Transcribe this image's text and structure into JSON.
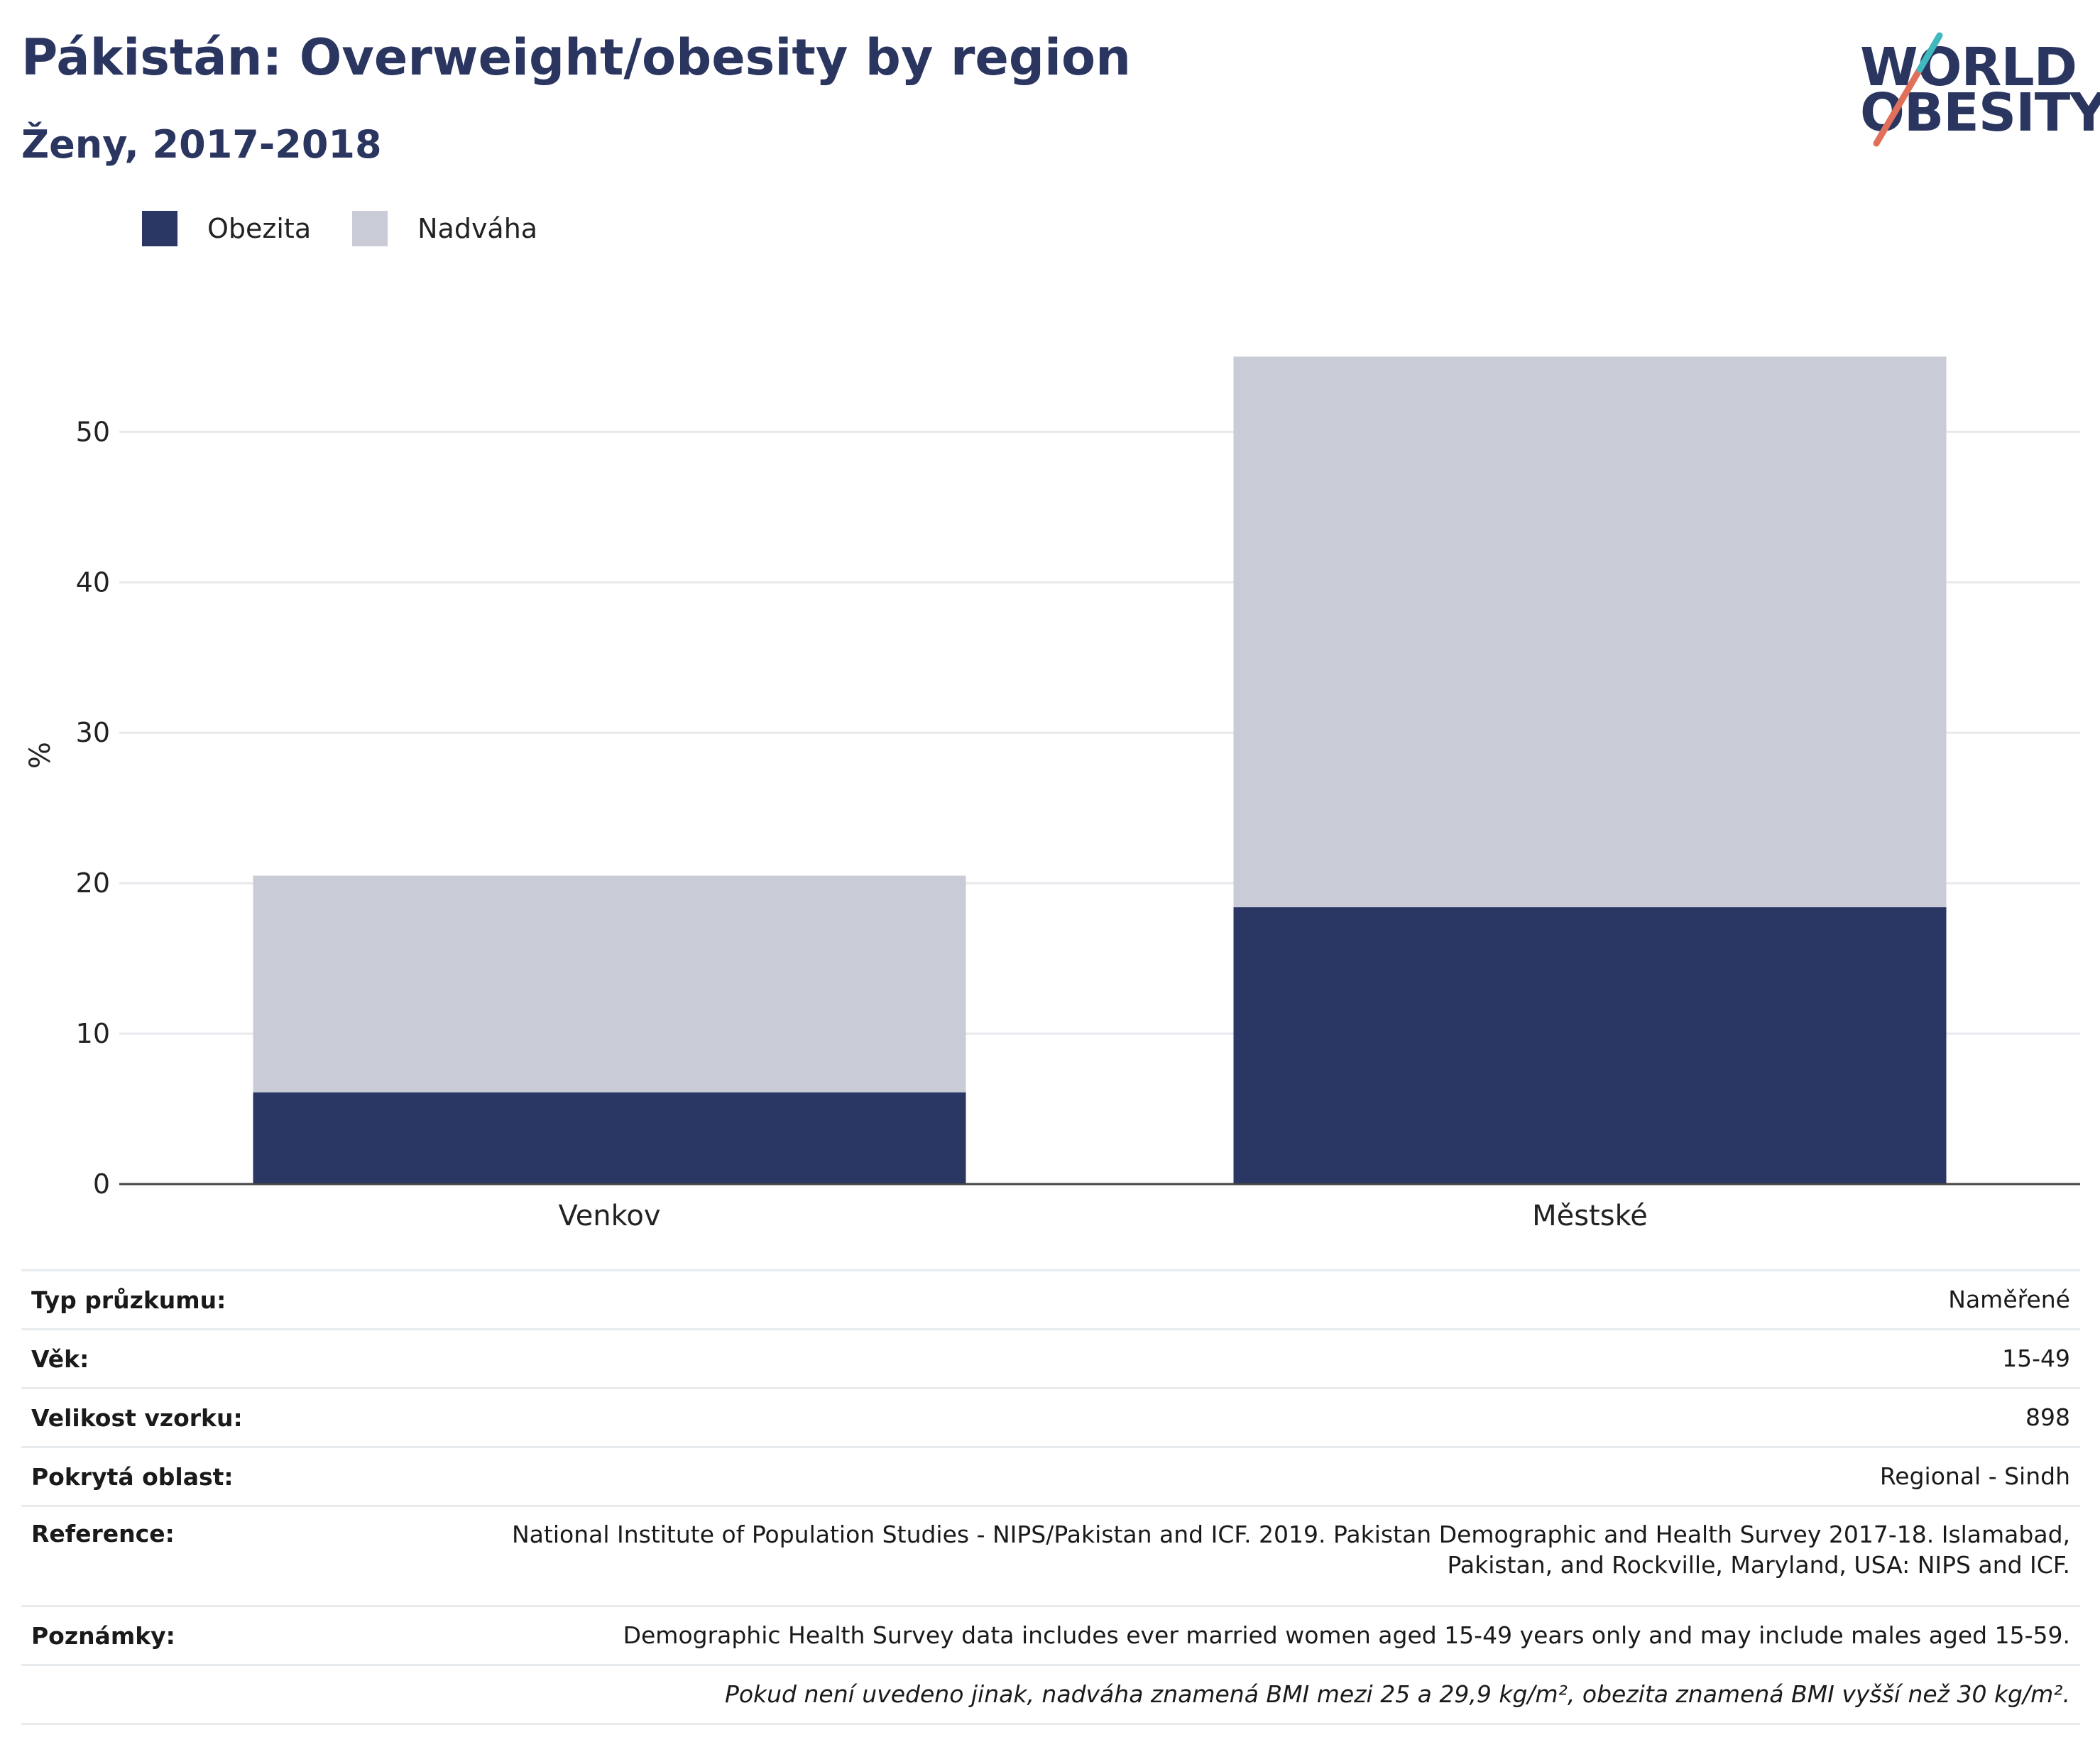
{
  "header": {
    "title": "Pákistán: Overweight/obesity by region",
    "subtitle": "Ženy, 2017-2018"
  },
  "logo": {
    "line1": "WORLD",
    "line2": "OBESITY",
    "colors": {
      "text": "#2a3560",
      "slash_red": "#e0705a",
      "slash_teal": "#3fb8be"
    }
  },
  "legend": [
    {
      "label": "Obezita",
      "color": "#2a3663"
    },
    {
      "label": "Nadváha",
      "color": "#c9cbd6"
    }
  ],
  "chart_data": {
    "type": "bar",
    "stacked": true,
    "categories": [
      "Venkov",
      "Městské"
    ],
    "series": [
      {
        "name": "Obezita",
        "color": "#2a3663",
        "values": [
          6.1,
          18.4
        ]
      },
      {
        "name": "Nadváha",
        "color": "#c9cbd6",
        "values": [
          14.4,
          36.6
        ]
      }
    ],
    "ylabel": "%",
    "ylim": [
      0,
      57
    ],
    "yticks": [
      0,
      10,
      20,
      30,
      40,
      50
    ],
    "grid": true,
    "legend_position": "top-left"
  },
  "info": [
    {
      "key": "Typ průzkumu:",
      "value": "Naměřené"
    },
    {
      "key": "Věk:",
      "value": "15-49"
    },
    {
      "key": "Velikost vzorku:",
      "value": "898"
    },
    {
      "key": "Pokrytá oblast:",
      "value": "Regional - Sindh"
    },
    {
      "key": "Reference:",
      "value_line1": "National Institute of Population Studies - NIPS/Pakistan and ICF. 2019. Pakistan Demographic and Health Survey 2017-18. Islamabad,",
      "value_line2": "Pakistan, and Rockville, Maryland, USA: NIPS and ICF."
    },
    {
      "key": "Poznámky:",
      "value": "Demographic Health Survey data includes ever married women aged 15-49 years only and may include males aged 15-59."
    }
  ],
  "footnote": "Pokud není uvedeno jinak, nadváha znamená BMI mezi 25 a 29,9 kg/m², obezita znamená BMI vyšší než 30 kg/m²."
}
